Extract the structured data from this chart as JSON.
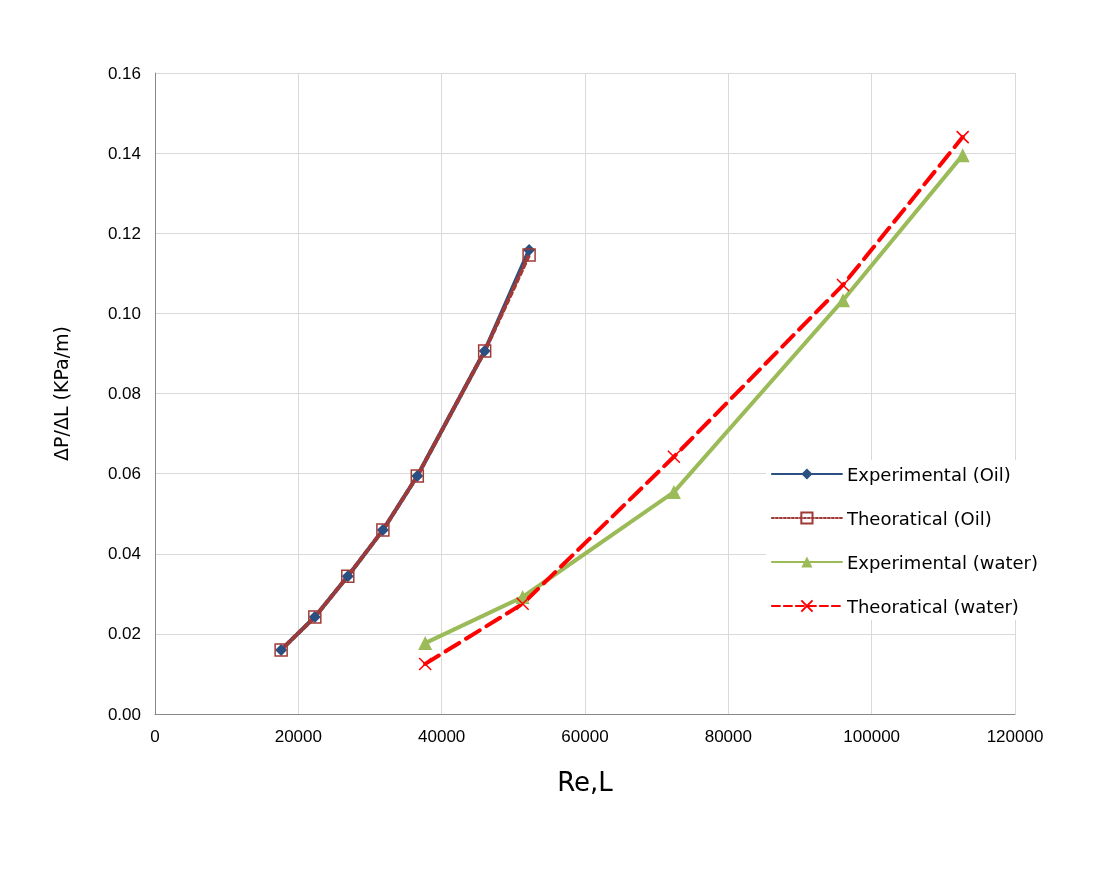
{
  "chart_data": {
    "type": "line",
    "xlabel": "Re,L",
    "ylabel": "ΔP/ΔL (KPa/m)",
    "xlim": [
      0,
      120000
    ],
    "xticks": [
      0,
      20000,
      40000,
      60000,
      80000,
      100000,
      120000
    ],
    "ylim": [
      0,
      0.16
    ],
    "yticks": [
      {
        "value": 0,
        "label": "0.00"
      },
      {
        "value": 0.02,
        "label": "0.02"
      },
      {
        "value": 0.04,
        "label": "0.04"
      },
      {
        "value": 0.06,
        "label": "0.06"
      },
      {
        "value": 0.08,
        "label": "0.08"
      },
      {
        "value": 0.1,
        "label": "0.10"
      },
      {
        "value": 0.12,
        "label": "0.12"
      },
      {
        "value": 0.14,
        "label": "0.14"
      },
      {
        "value": 0.16,
        "label": "0.16"
      }
    ],
    "grid": true,
    "legend": "right",
    "series": [
      {
        "name": "Experimental (Oil)",
        "color": "#2a4f80",
        "marker": "diamond",
        "line_style": "solid",
        "x": [
          17600,
          22300,
          26900,
          31800,
          36600,
          46000,
          52200
        ],
        "values": [
          0.016,
          0.0242,
          0.0344,
          0.0459,
          0.0594,
          0.0906,
          0.1158
        ]
      },
      {
        "name": "Theoratical (Oil)",
        "color": "#a03a36",
        "marker": "square",
        "line_style": "dotted",
        "x": [
          17600,
          22300,
          26900,
          31800,
          36600,
          46000,
          52200
        ],
        "values": [
          0.016,
          0.0242,
          0.0344,
          0.0459,
          0.0594,
          0.0906,
          0.1146
        ]
      },
      {
        "name": "Experimental (water)",
        "color": "#9bbb59",
        "marker": "triangle",
        "line_style": "solid",
        "x": [
          37700,
          51300,
          72400,
          96000,
          112700
        ],
        "values": [
          0.0177,
          0.0292,
          0.0554,
          0.1033,
          0.1395
        ]
      },
      {
        "name": "Theoratical (water)",
        "color": "#ff0000",
        "marker": "cross",
        "line_style": "dashed",
        "x": [
          37700,
          51300,
          72400,
          96000,
          112700
        ],
        "values": [
          0.0125,
          0.0275,
          0.0642,
          0.1071,
          0.144
        ]
      }
    ]
  }
}
